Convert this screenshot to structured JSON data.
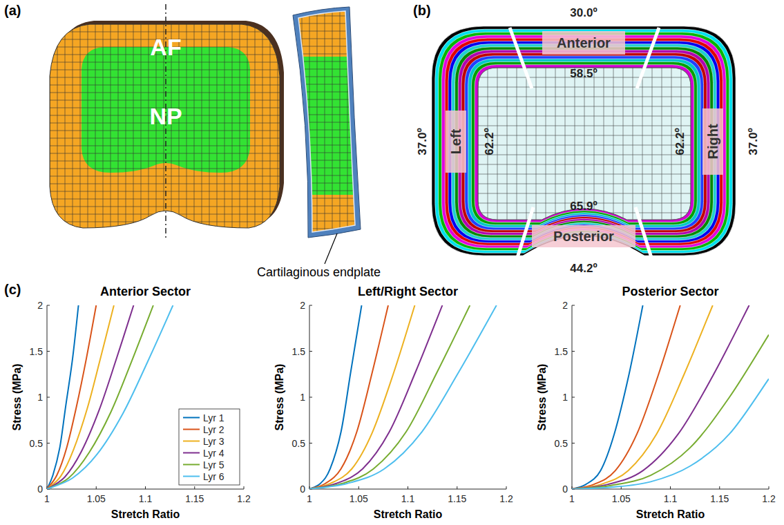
{
  "diagram": {
    "panel_a": {
      "label": "(a)",
      "regions": [
        "AF",
        "NP"
      ],
      "annotation": "Cartilaginous endplate"
    },
    "panel_b": {
      "label": "(b)",
      "sectors": [
        "Anterior",
        "Left",
        "Right",
        "Posterior"
      ],
      "angles": {
        "outer_anterior": "30.0º",
        "inner_anterior": "58.5º",
        "outer_left": "37.0º",
        "inner_left": "62.2º",
        "inner_right": "62.2º",
        "outer_right": "37.0º",
        "inner_posterior": "65.9º",
        "outer_posterior": "44.2º"
      }
    },
    "panel_c": {
      "label": "(c)"
    }
  },
  "chart_data": [
    {
      "type": "line",
      "title": "Anterior Sector",
      "x_label": "Stretch Ratio",
      "y_label": "Stress (MPa)",
      "xlim": [
        1,
        1.2
      ],
      "ylim": [
        0,
        2
      ],
      "xticks": [
        1,
        1.05,
        1.1,
        1.15,
        1.2
      ],
      "yticks": [
        0,
        0.5,
        1,
        1.5,
        2
      ],
      "legend": "lower right",
      "series": [
        {
          "name": "Lyr 1",
          "color": "#0072BD",
          "x": [
            1,
            1.006,
            1.013,
            1.019,
            1.026,
            1.032
          ],
          "values": [
            0,
            0.15,
            0.45,
            0.9,
            1.42,
            2
          ]
        },
        {
          "name": "Lyr 2",
          "color": "#D95319",
          "x": [
            1,
            1.01,
            1.02,
            1.03,
            1.04,
            1.05
          ],
          "values": [
            0,
            0.15,
            0.45,
            0.9,
            1.42,
            2
          ]
        },
        {
          "name": "Lyr 3",
          "color": "#EDB120",
          "x": [
            1,
            1.014,
            1.027,
            1.041,
            1.054,
            1.068
          ],
          "values": [
            0,
            0.14,
            0.43,
            0.88,
            1.41,
            2
          ]
        },
        {
          "name": "Lyr 4",
          "color": "#7E2F8E",
          "x": [
            1,
            1.018,
            1.035,
            1.053,
            1.07,
            1.088
          ],
          "values": [
            0,
            0.13,
            0.41,
            0.86,
            1.4,
            2
          ]
        },
        {
          "name": "Lyr 5",
          "color": "#77AC30",
          "x": [
            1,
            1.022,
            1.043,
            1.065,
            1.086,
            1.108
          ],
          "values": [
            0,
            0.12,
            0.4,
            0.84,
            1.39,
            2
          ]
        },
        {
          "name": "Lyr 6",
          "color": "#4DBEEE",
          "x": [
            1,
            1.026,
            1.051,
            1.077,
            1.102,
            1.128
          ],
          "values": [
            0,
            0.12,
            0.38,
            0.82,
            1.38,
            2
          ]
        }
      ]
    },
    {
      "type": "line",
      "title": "Left/Right Sector",
      "x_label": "Stretch Ratio",
      "y_label": "Stress (MPa)",
      "xlim": [
        1,
        1.2
      ],
      "ylim": [
        0,
        2
      ],
      "xticks": [
        1,
        1.05,
        1.1,
        1.15,
        1.2
      ],
      "yticks": [
        0,
        0.5,
        1,
        1.5,
        2
      ],
      "series": [
        {
          "color": "#0072BD",
          "x": [
            1,
            1.011,
            1.021,
            1.032,
            1.042,
            1.053
          ],
          "values": [
            0,
            0.06,
            0.22,
            0.62,
            1.28,
            2
          ]
        },
        {
          "color": "#D95319",
          "x": [
            1,
            1.016,
            1.032,
            1.048,
            1.064,
            1.08
          ],
          "values": [
            0,
            0.06,
            0.22,
            0.62,
            1.28,
            2
          ]
        },
        {
          "color": "#EDB120",
          "x": [
            1,
            1.021,
            1.043,
            1.064,
            1.086,
            1.107
          ],
          "values": [
            0,
            0.06,
            0.22,
            0.62,
            1.28,
            2
          ]
        },
        {
          "color": "#7E2F8E",
          "x": [
            1,
            1.027,
            1.054,
            1.081,
            1.108,
            1.135
          ],
          "values": [
            0,
            0.06,
            0.22,
            0.62,
            1.28,
            2
          ]
        },
        {
          "color": "#77AC30",
          "x": [
            1,
            1.033,
            1.065,
            1.098,
            1.13,
            1.163
          ],
          "values": [
            0,
            0.06,
            0.22,
            0.62,
            1.28,
            2
          ]
        },
        {
          "color": "#4DBEEE",
          "x": [
            1,
            1.038,
            1.076,
            1.114,
            1.152,
            1.19
          ],
          "values": [
            0,
            0.06,
            0.22,
            0.62,
            1.28,
            2
          ]
        }
      ]
    },
    {
      "type": "line",
      "title": "Posterior Sector",
      "x_label": "Stretch Ratio",
      "y_label": "Stress (MPa)",
      "xlim": [
        1,
        1.2
      ],
      "ylim": [
        0,
        2
      ],
      "xticks": [
        1,
        1.05,
        1.1,
        1.15,
        1.2
      ],
      "yticks": [
        0,
        0.5,
        1,
        1.5,
        2
      ],
      "series": [
        {
          "color": "#0072BD",
          "x": [
            1,
            1.014,
            1.029,
            1.043,
            1.058,
            1.072
          ],
          "values": [
            0,
            0.05,
            0.2,
            0.6,
            1.25,
            2
          ]
        },
        {
          "color": "#D95319",
          "x": [
            1,
            1.022,
            1.044,
            1.066,
            1.088,
            1.11
          ],
          "values": [
            0,
            0.05,
            0.2,
            0.6,
            1.25,
            2
          ]
        },
        {
          "color": "#EDB120",
          "x": [
            1,
            1.029,
            1.057,
            1.086,
            1.114,
            1.143
          ],
          "values": [
            0,
            0.05,
            0.2,
            0.6,
            1.25,
            2
          ]
        },
        {
          "color": "#7E2F8E",
          "x": [
            1,
            1.036,
            1.072,
            1.108,
            1.144,
            1.18
          ],
          "values": [
            0,
            0.05,
            0.2,
            0.6,
            1.25,
            2
          ]
        },
        {
          "color": "#77AC30",
          "x": [
            1,
            1.04,
            1.08,
            1.12,
            1.16,
            1.2
          ],
          "values": [
            0,
            0.04,
            0.15,
            0.45,
            1.0,
            1.68
          ]
        },
        {
          "color": "#4DBEEE",
          "x": [
            1,
            1.04,
            1.08,
            1.12,
            1.16,
            1.2
          ],
          "values": [
            0,
            0.02,
            0.08,
            0.25,
            0.6,
            1.2
          ]
        }
      ]
    }
  ]
}
